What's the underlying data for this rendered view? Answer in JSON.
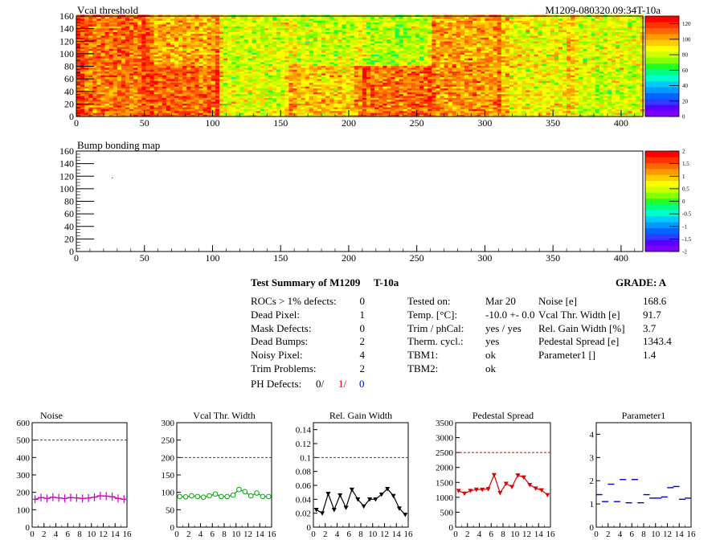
{
  "colors": {
    "palette": [
      "#7f00ff",
      "#5a00ff",
      "#2f3cff",
      "#0066ff",
      "#0099ff",
      "#00ccff",
      "#00ffcc",
      "#00ff88",
      "#22ff22",
      "#88ff00",
      "#ccff00",
      "#ffff00",
      "#ffcc00",
      "#ff9900",
      "#ff6600",
      "#ff3300",
      "#ff0000"
    ],
    "noise": "#cc00cc",
    "vcal": "#00aa00",
    "gain": "#000000",
    "pedestal": "#dd0000",
    "param1": "#0000cc",
    "reference": "#cc0000",
    "ph_red": "#dd0000",
    "ph_blue": "#0000cc"
  },
  "chart_data": [
    {
      "type": "heatmap",
      "title": "Vcal threshold",
      "module_label": "M1209-080320.09:34T-10a",
      "xlim": [
        0,
        416
      ],
      "ylim": [
        0,
        160
      ],
      "x_ticks": [
        "0",
        "50",
        "100",
        "150",
        "200",
        "250",
        "300",
        "350",
        "400"
      ],
      "y_ticks": [
        "0",
        "20",
        "40",
        "60",
        "80",
        "100",
        "120",
        "140",
        "160"
      ],
      "z_ticks": [
        "0",
        "20",
        "40",
        "60",
        "80",
        "100",
        "120"
      ],
      "zlim": [
        0,
        130
      ],
      "roc_grid": {
        "cols": 8,
        "rows": 2,
        "roc_width": 52,
        "roc_height": 80,
        "top_row_mean": [
          110,
          100,
          82,
          80,
          78,
          102,
          88,
          84
        ],
        "bottom_row_mean": [
          108,
          112,
          84,
          96,
          110,
          104,
          88,
          82
        ]
      }
    },
    {
      "type": "heatmap",
      "title": "Bump bonding map",
      "xlim": [
        0,
        416
      ],
      "ylim": [
        0,
        160
      ],
      "x_ticks": [
        "0",
        "50",
        "100",
        "150",
        "200",
        "250",
        "300",
        "350",
        "400"
      ],
      "y_ticks": [
        "0",
        "20",
        "40",
        "60",
        "80",
        "100",
        "120",
        "140",
        "160"
      ],
      "z_ticks": [
        "-2",
        "-1.5",
        "-1",
        "-0.5",
        "0",
        "0.5",
        "1",
        "1.5",
        "2"
      ],
      "zlim": [
        -2,
        2
      ],
      "points": [
        [
          26,
          118
        ]
      ]
    },
    {
      "type": "line",
      "title": "Noise",
      "x": [
        0,
        1,
        2,
        3,
        4,
        5,
        6,
        7,
        8,
        9,
        10,
        11,
        12,
        13,
        14,
        15
      ],
      "values": [
        160,
        170,
        165,
        172,
        168,
        165,
        170,
        168,
        165,
        167,
        172,
        180,
        178,
        175,
        165,
        160
      ],
      "xlim": [
        0,
        16
      ],
      "ylim": [
        0,
        600
      ],
      "x_ticks": [
        "0",
        "2",
        "4",
        "6",
        "8",
        "10",
        "12",
        "14",
        "16"
      ],
      "y_ticks": [
        "0",
        "100",
        "200",
        "300",
        "400",
        "500",
        "600"
      ],
      "reference": 500
    },
    {
      "type": "line",
      "title": "Vcal Thr. Width",
      "x": [
        0,
        1,
        2,
        3,
        4,
        5,
        6,
        7,
        8,
        9,
        10,
        11,
        12,
        13,
        14,
        15
      ],
      "values": [
        88,
        87,
        90,
        88,
        86,
        90,
        95,
        88,
        88,
        92,
        108,
        102,
        90,
        98,
        88,
        88
      ],
      "xlim": [
        0,
        16
      ],
      "ylim": [
        0,
        300
      ],
      "x_ticks": [
        "0",
        "2",
        "4",
        "6",
        "8",
        "10",
        "12",
        "14",
        "16"
      ],
      "y_ticks": [
        "0",
        "50",
        "100",
        "150",
        "200",
        "250",
        "300"
      ],
      "reference": 200
    },
    {
      "type": "line",
      "title": "Rel. Gain Width",
      "x": [
        0,
        1,
        2,
        3,
        4,
        5,
        6,
        7,
        8,
        9,
        10,
        11,
        12,
        13,
        14,
        15
      ],
      "values": [
        0.025,
        0.02,
        0.048,
        0.025,
        0.046,
        0.028,
        0.054,
        0.04,
        0.03,
        0.04,
        0.04,
        0.047,
        0.055,
        0.045,
        0.027,
        0.018
      ],
      "xlim": [
        0,
        16
      ],
      "ylim": [
        0,
        0.15
      ],
      "x_ticks": [
        "0",
        "2",
        "4",
        "6",
        "8",
        "10",
        "12",
        "14",
        "16"
      ],
      "y_ticks": [
        "0",
        "0.02",
        "0.04",
        "0.06",
        "0.08",
        "0.1",
        "0.12",
        "0.14"
      ],
      "reference": 0.1
    },
    {
      "type": "line",
      "title": "Pedestal Spread",
      "x": [
        0,
        1,
        2,
        3,
        4,
        5,
        6,
        7,
        8,
        9,
        10,
        11,
        12,
        13,
        14,
        15
      ],
      "values": [
        1220,
        1130,
        1220,
        1260,
        1260,
        1280,
        1750,
        1150,
        1460,
        1350,
        1740,
        1670,
        1420,
        1300,
        1240,
        1080
      ],
      "xlim": [
        0,
        16
      ],
      "ylim": [
        0,
        3500
      ],
      "x_ticks": [
        "0",
        "2",
        "4",
        "6",
        "8",
        "10",
        "12",
        "14",
        "16"
      ],
      "y_ticks": [
        "0",
        "500",
        "1000",
        "1500",
        "2000",
        "2500",
        "3000",
        "3500"
      ],
      "reference": 2500
    },
    {
      "type": "scatter",
      "title": "Parameter1",
      "x": [
        0,
        1,
        2,
        3,
        4,
        5,
        6,
        7,
        8,
        9,
        10,
        11,
        12,
        13,
        14,
        15
      ],
      "values": [
        1.4,
        1.1,
        1.85,
        1.1,
        2.05,
        1.05,
        2.05,
        1.05,
        1.4,
        1.25,
        1.25,
        1.3,
        1.7,
        1.75,
        1.2,
        1.25
      ],
      "xlim": [
        0,
        16
      ],
      "ylim": [
        0,
        4.5
      ],
      "x_ticks": [
        "0",
        "2",
        "4",
        "6",
        "8",
        "10",
        "12",
        "14",
        "16"
      ],
      "y_ticks": [
        "0",
        "1",
        "2",
        "3",
        "4"
      ]
    }
  ],
  "summary": {
    "heading": "Test Summary of M1209",
    "temp_tag": "T-10a",
    "grade": "GRADE:  A",
    "defects": [
      {
        "label": "ROCs > 1% defects:",
        "value": "0"
      },
      {
        "label": "Dead Pixel:",
        "value": "1"
      },
      {
        "label": "Mask Defects:",
        "value": "0"
      },
      {
        "label": "Dead Bumps:",
        "value": "2"
      },
      {
        "label": "Noisy Pixel:",
        "value": "4"
      },
      {
        "label": "Trim Problems:",
        "value": "2"
      }
    ],
    "ph_defects": {
      "label": "PH Defects:",
      "v1": "0/",
      "v2": "1/",
      "v3": "0"
    },
    "conditions": [
      {
        "label": "Tested on:",
        "value": "Mar 20"
      },
      {
        "label": "Temp. [°C]:",
        "value": "-10.0 +- 0.0"
      },
      {
        "label": "Trim / phCal:",
        "value": "yes / yes"
      },
      {
        "label": "Therm. cycl.:",
        "value": "yes"
      },
      {
        "label": "TBM1:",
        "value": "ok"
      },
      {
        "label": "TBM2:",
        "value": "ok"
      }
    ],
    "results": [
      {
        "label": "Noise [e]",
        "value": "168.6"
      },
      {
        "label": "Vcal Thr. Width [e]",
        "value": "91.7"
      },
      {
        "label": "Rel. Gain Width [%]",
        "value": "3.7"
      },
      {
        "label": "Pedestal Spread [e]",
        "value": "1343.4"
      },
      {
        "label": "Parameter1 []",
        "value": "1.4"
      }
    ]
  }
}
